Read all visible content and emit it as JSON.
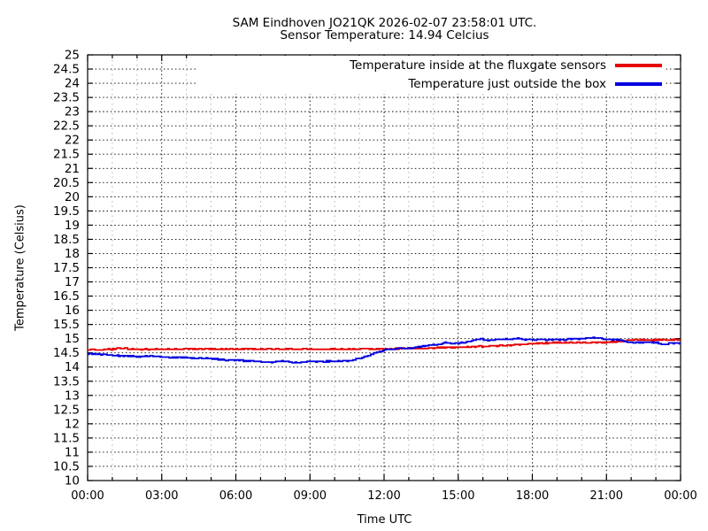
{
  "title": {
    "line1": "SAM Eindhoven JO21QK 2026-02-07 23:58:01 UTC.",
    "line2": "Sensor Temperature: 14.94 Celcius"
  },
  "colors": {
    "inside_line": "#e60000",
    "outside_line": "#0000e0",
    "grid_major": "#000000",
    "grid_minor": "#a9a9a9",
    "border": "#000000"
  },
  "chart_data": {
    "type": "line",
    "title": "SAM Eindhoven JO21QK 2026-02-07 23:58:01 UTC.",
    "subtitle": "Sensor Temperature: 14.94 Celcius",
    "xlabel": "Time UTC",
    "ylabel": "Temperature (Celsius)",
    "xlim_hours": [
      0,
      24
    ],
    "ylim": [
      10,
      25
    ],
    "y_tick_step": 0.5,
    "x_major_tick_hours": 3,
    "x_minor_tick_hours": 1,
    "x_tick_labels": [
      "00:00",
      "03:00",
      "06:00",
      "09:00",
      "12:00",
      "15:00",
      "18:00",
      "21:00",
      "00:00"
    ],
    "grid": true,
    "legend_position": "top-right-opaque",
    "series": [
      {
        "name": "Temperature inside at the fluxgate sensors",
        "color_key": "inside_line",
        "points_hour_degC": [
          [
            0,
            14.58
          ],
          [
            0.15,
            14.62
          ],
          [
            0.5,
            14.61
          ],
          [
            1.0,
            14.63
          ],
          [
            1.3,
            14.66
          ],
          [
            1.7,
            14.64
          ],
          [
            2.2,
            14.62
          ],
          [
            3.0,
            14.63
          ],
          [
            4.0,
            14.63
          ],
          [
            5.0,
            14.64
          ],
          [
            6.0,
            14.63
          ],
          [
            7.0,
            14.64
          ],
          [
            8.0,
            14.63
          ],
          [
            9.0,
            14.63
          ],
          [
            10.0,
            14.63
          ],
          [
            11.0,
            14.64
          ],
          [
            12.0,
            14.64
          ],
          [
            12.8,
            14.65
          ],
          [
            13.5,
            14.66
          ],
          [
            14.2,
            14.68
          ],
          [
            15.0,
            14.7
          ],
          [
            15.8,
            14.72
          ],
          [
            16.5,
            14.75
          ],
          [
            17.2,
            14.78
          ],
          [
            18.0,
            14.82
          ],
          [
            18.6,
            14.85
          ],
          [
            19.5,
            14.86
          ],
          [
            20.5,
            14.87
          ],
          [
            21.2,
            14.88
          ],
          [
            21.6,
            14.91
          ],
          [
            21.9,
            14.95
          ],
          [
            22.4,
            14.96
          ],
          [
            23.0,
            14.95
          ],
          [
            23.5,
            14.96
          ],
          [
            24,
            14.97
          ]
        ]
      },
      {
        "name": "Temperature just outside the box",
        "color_key": "outside_line",
        "points_hour_degC": [
          [
            0,
            14.47
          ],
          [
            0.4,
            14.45
          ],
          [
            0.9,
            14.42
          ],
          [
            1.4,
            14.39
          ],
          [
            2.0,
            14.37
          ],
          [
            2.6,
            14.38
          ],
          [
            3.2,
            14.34
          ],
          [
            4.0,
            14.33
          ],
          [
            4.8,
            14.31
          ],
          [
            5.4,
            14.26
          ],
          [
            6.2,
            14.23
          ],
          [
            7.0,
            14.2
          ],
          [
            7.4,
            14.17
          ],
          [
            7.9,
            14.21
          ],
          [
            8.3,
            14.16
          ],
          [
            8.9,
            14.18
          ],
          [
            9.5,
            14.2
          ],
          [
            10.2,
            14.2
          ],
          [
            10.6,
            14.23
          ],
          [
            11.0,
            14.3
          ],
          [
            11.4,
            14.42
          ],
          [
            11.8,
            14.55
          ],
          [
            12.1,
            14.63
          ],
          [
            12.6,
            14.65
          ],
          [
            13.1,
            14.66
          ],
          [
            13.4,
            14.7
          ],
          [
            13.7,
            14.76
          ],
          [
            14.1,
            14.79
          ],
          [
            14.4,
            14.85
          ],
          [
            14.9,
            14.83
          ],
          [
            15.3,
            14.88
          ],
          [
            15.7,
            14.95
          ],
          [
            15.9,
            15.0
          ],
          [
            16.1,
            14.93
          ],
          [
            16.6,
            14.97
          ],
          [
            17.1,
            14.98
          ],
          [
            17.4,
            15.01
          ],
          [
            17.7,
            14.97
          ],
          [
            18.3,
            14.97
          ],
          [
            19.2,
            14.96
          ],
          [
            20.2,
            15.02
          ],
          [
            20.7,
            15.03
          ],
          [
            21.0,
            14.97
          ],
          [
            21.5,
            14.97
          ],
          [
            21.8,
            14.88
          ],
          [
            22.4,
            14.87
          ],
          [
            23.0,
            14.86
          ],
          [
            23.3,
            14.79
          ],
          [
            23.6,
            14.85
          ],
          [
            24,
            14.83
          ]
        ]
      }
    ]
  }
}
